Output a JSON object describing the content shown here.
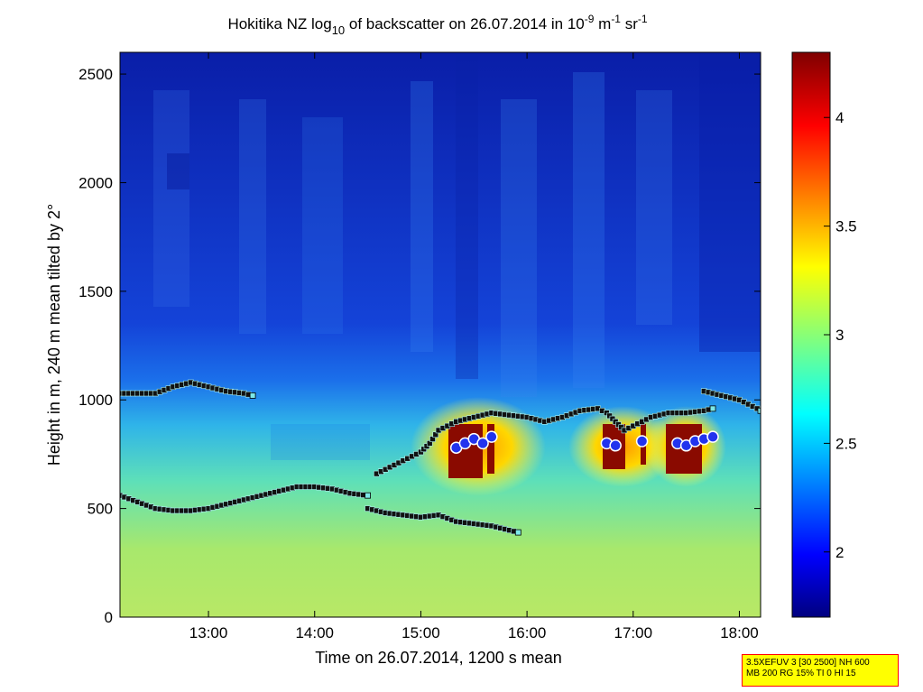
{
  "chart_data": {
    "type": "heatmap",
    "title": {
      "prefix": "Hokitika NZ log",
      "log_base": "10",
      "middle": " of backscatter on 26.07.2014 in 10",
      "exp1": "-9",
      "unit1": " m",
      "exp2": "-1",
      "unit2": " sr",
      "exp3": "-1"
    },
    "xlabel": "Time on 26.07.2014, 1200 s mean",
    "ylabel": "Height in m, 240 m mean tilted by 2°",
    "x_ticks": [
      "13:00",
      "14:00",
      "15:00",
      "16:00",
      "17:00",
      "18:00"
    ],
    "xlim": [
      "12:10",
      "18:12"
    ],
    "ylim": [
      0,
      2600
    ],
    "y_ticks": [
      "0",
      "500",
      "1000",
      "1500",
      "2000",
      "2500"
    ],
    "colorbar": {
      "range": [
        1.7,
        4.3
      ],
      "ticks": [
        "2",
        "2.5",
        "3",
        "3.5",
        "4"
      ],
      "colormap": "jet"
    },
    "series": [
      {
        "marker": "square",
        "x": [
          "12:10",
          "12:20",
          "12:30",
          "12:40",
          "12:50",
          "13:00",
          "13:10",
          "13:20",
          "13:25"
        ],
        "y": [
          1030,
          1030,
          1030,
          1060,
          1080,
          1060,
          1040,
          1030,
          1020
        ]
      },
      {
        "marker": "square",
        "x": [
          "12:10",
          "12:20",
          "12:30",
          "12:40",
          "12:50",
          "13:00",
          "13:10",
          "13:20",
          "13:30",
          "13:40",
          "13:50",
          "14:00",
          "14:10",
          "14:20",
          "14:30"
        ],
        "y": [
          560,
          530,
          500,
          490,
          490,
          500,
          520,
          540,
          560,
          580,
          600,
          600,
          590,
          570,
          560
        ]
      },
      {
        "marker": "square",
        "x": [
          "14:30",
          "14:40",
          "14:50",
          "15:00",
          "15:10",
          "15:20",
          "15:30",
          "15:40",
          "15:50",
          "15:55"
        ],
        "y": [
          500,
          480,
          470,
          460,
          470,
          440,
          430,
          420,
          400,
          390
        ]
      },
      {
        "marker": "square",
        "x": [
          "14:35",
          "14:45",
          "14:55",
          "15:00",
          "15:05",
          "15:10",
          "15:15",
          "15:20",
          "15:30",
          "15:40",
          "15:50",
          "16:00",
          "16:10",
          "16:20",
          "16:30",
          "16:40",
          "16:45",
          "16:50",
          "16:55",
          "17:00",
          "17:10",
          "17:20",
          "17:30",
          "17:40",
          "17:45"
        ],
        "y": [
          660,
          700,
          740,
          760,
          800,
          860,
          880,
          900,
          920,
          940,
          930,
          920,
          900,
          920,
          950,
          960,
          940,
          900,
          860,
          880,
          920,
          940,
          940,
          950,
          960
        ]
      },
      {
        "marker": "square",
        "x": [
          "17:40",
          "17:50",
          "18:00",
          "18:10",
          "18:12"
        ],
        "y": [
          1040,
          1020,
          1000,
          960,
          950
        ]
      },
      {
        "marker": "circle",
        "x": [
          "15:20",
          "15:25",
          "15:30",
          "15:35",
          "15:40",
          "16:45",
          "16:50",
          "17:05",
          "17:25",
          "17:30",
          "17:35",
          "17:40",
          "17:45"
        ],
        "y": [
          780,
          800,
          820,
          800,
          830,
          800,
          790,
          810,
          800,
          790,
          810,
          820,
          830
        ]
      }
    ]
  },
  "info_box": {
    "line1": "3.5XEFUV 3 [30 2500] NH 600",
    "line2": "MB 200 RG 15% TI 0 HI 15"
  },
  "colors": {
    "background": "#ffffff",
    "cloud_detect": "#ffffff",
    "base_marker": "#3e3e3e",
    "circle_marker": "#2233ee"
  }
}
